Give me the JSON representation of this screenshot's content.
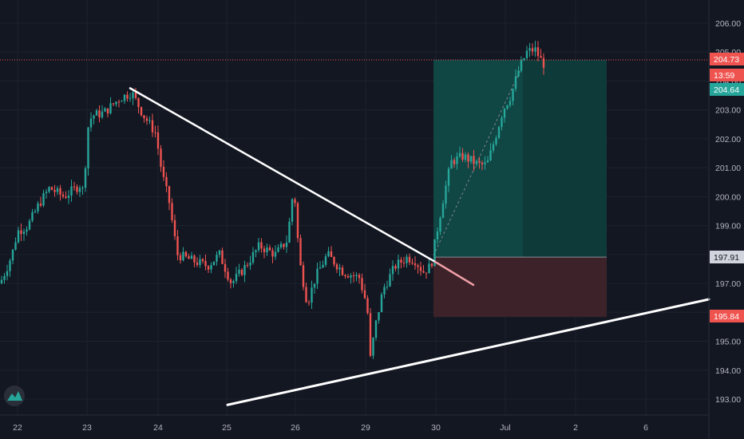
{
  "chart_data": {
    "type": "candlestick",
    "y_axis": {
      "ticks": [
        "206.00",
        "205.00",
        "204.00",
        "203.00",
        "202.00",
        "201.00",
        "200.00",
        "199.00",
        "198.00",
        "197.00",
        "196.00",
        "195.00",
        "194.00",
        "193.00"
      ],
      "values": [
        206,
        205,
        204,
        203,
        202,
        201,
        200,
        199,
        198,
        197,
        196,
        195,
        194,
        193
      ],
      "range": [
        192.3,
        206.6
      ]
    },
    "x_axis": {
      "ticks": [
        "22",
        "23",
        "24",
        "25",
        "26",
        "29",
        "30",
        "Jul",
        "2",
        "6"
      ]
    },
    "price_tags": [
      {
        "label": "204.73",
        "value": 204.73,
        "color": "#ef5350"
      },
      {
        "label": "13:59",
        "value": 204.3,
        "color": "#ef5350"
      },
      {
        "label": "204.64",
        "value": 203.9,
        "color": "#26a69a"
      },
      {
        "label": "197.91",
        "value": 197.91,
        "color": "#d1d4dc"
      },
      {
        "label": "195.84",
        "value": 195.84,
        "color": "#ef5350"
      }
    ],
    "current_price_line": 204.73,
    "position": {
      "entry": 197.91,
      "target": 204.73,
      "stop": 195.84,
      "x_start": 30,
      "x_end": 2.4
    },
    "trend_lines": [
      {
        "name": "downtrend",
        "from": {
          "x": 23.6,
          "y": 203.75
        },
        "to": {
          "x": 30.55,
          "y": 196.95
        }
      },
      {
        "name": "uptrend",
        "from": {
          "x": 25,
          "y": 192.8
        },
        "to": {
          "x": 7.9,
          "y": 196.45
        }
      }
    ],
    "colors": {
      "up": "#26a69a",
      "down": "#ef5350",
      "profit_zone": "#0e3b3a",
      "loss_zone": "#3d2329",
      "background": "#131722"
    }
  }
}
